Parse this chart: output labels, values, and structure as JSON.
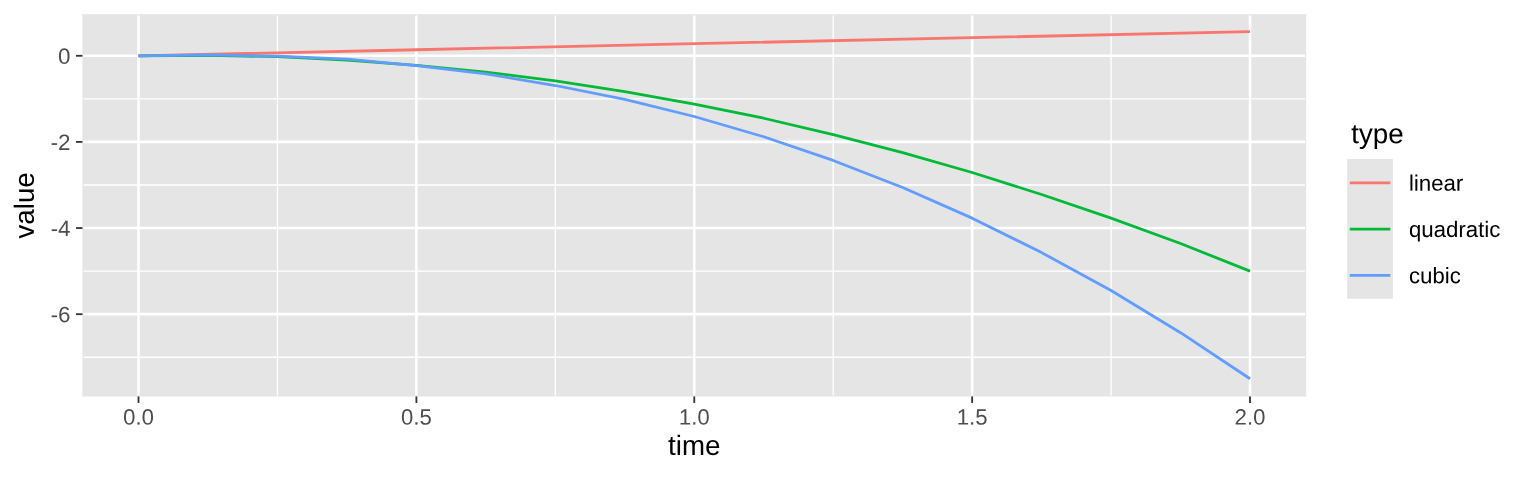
{
  "chart_data": {
    "type": "line",
    "xlabel": "time",
    "ylabel": "value",
    "legend_title": "type",
    "x": [
      0,
      0.125,
      0.25,
      0.375,
      0.5,
      0.625,
      0.75,
      0.875,
      1.0,
      1.125,
      1.25,
      1.375,
      1.5,
      1.625,
      1.75,
      1.875,
      2.0
    ],
    "series": [
      {
        "name": "linear",
        "color": "#F8766D",
        "x": [
          0,
          0.5,
          1.0,
          1.5,
          2.0
        ],
        "values": [
          0,
          0.14,
          0.28,
          0.42,
          0.56
        ]
      },
      {
        "name": "quadratic",
        "color": "#00BA38",
        "values": [
          0,
          0.01,
          -0.02,
          -0.1,
          -0.22,
          -0.38,
          -0.58,
          -0.83,
          -1.12,
          -1.45,
          -1.83,
          -2.25,
          -2.71,
          -3.22,
          -3.77,
          -4.36,
          -5.0
        ]
      },
      {
        "name": "cubic",
        "color": "#619CFF",
        "values": [
          0,
          0.02,
          -0.01,
          -0.08,
          -0.23,
          -0.42,
          -0.69,
          -1.01,
          -1.41,
          -1.88,
          -2.43,
          -3.06,
          -3.77,
          -4.57,
          -5.45,
          -6.43,
          -7.5
        ]
      }
    ],
    "xlim": [
      -0.1,
      2.1
    ],
    "ylim": [
      -7.9,
      0.95
    ],
    "xticks": [
      {
        "value": 0,
        "label": "0.0"
      },
      {
        "value": 0.5,
        "label": "0.5"
      },
      {
        "value": 1.0,
        "label": "1.0"
      },
      {
        "value": 1.5,
        "label": "1.5"
      },
      {
        "value": 2.0,
        "label": "2.0"
      }
    ],
    "yticks": [
      -6,
      -4,
      -2,
      0
    ],
    "grid": true,
    "legend": "right"
  }
}
